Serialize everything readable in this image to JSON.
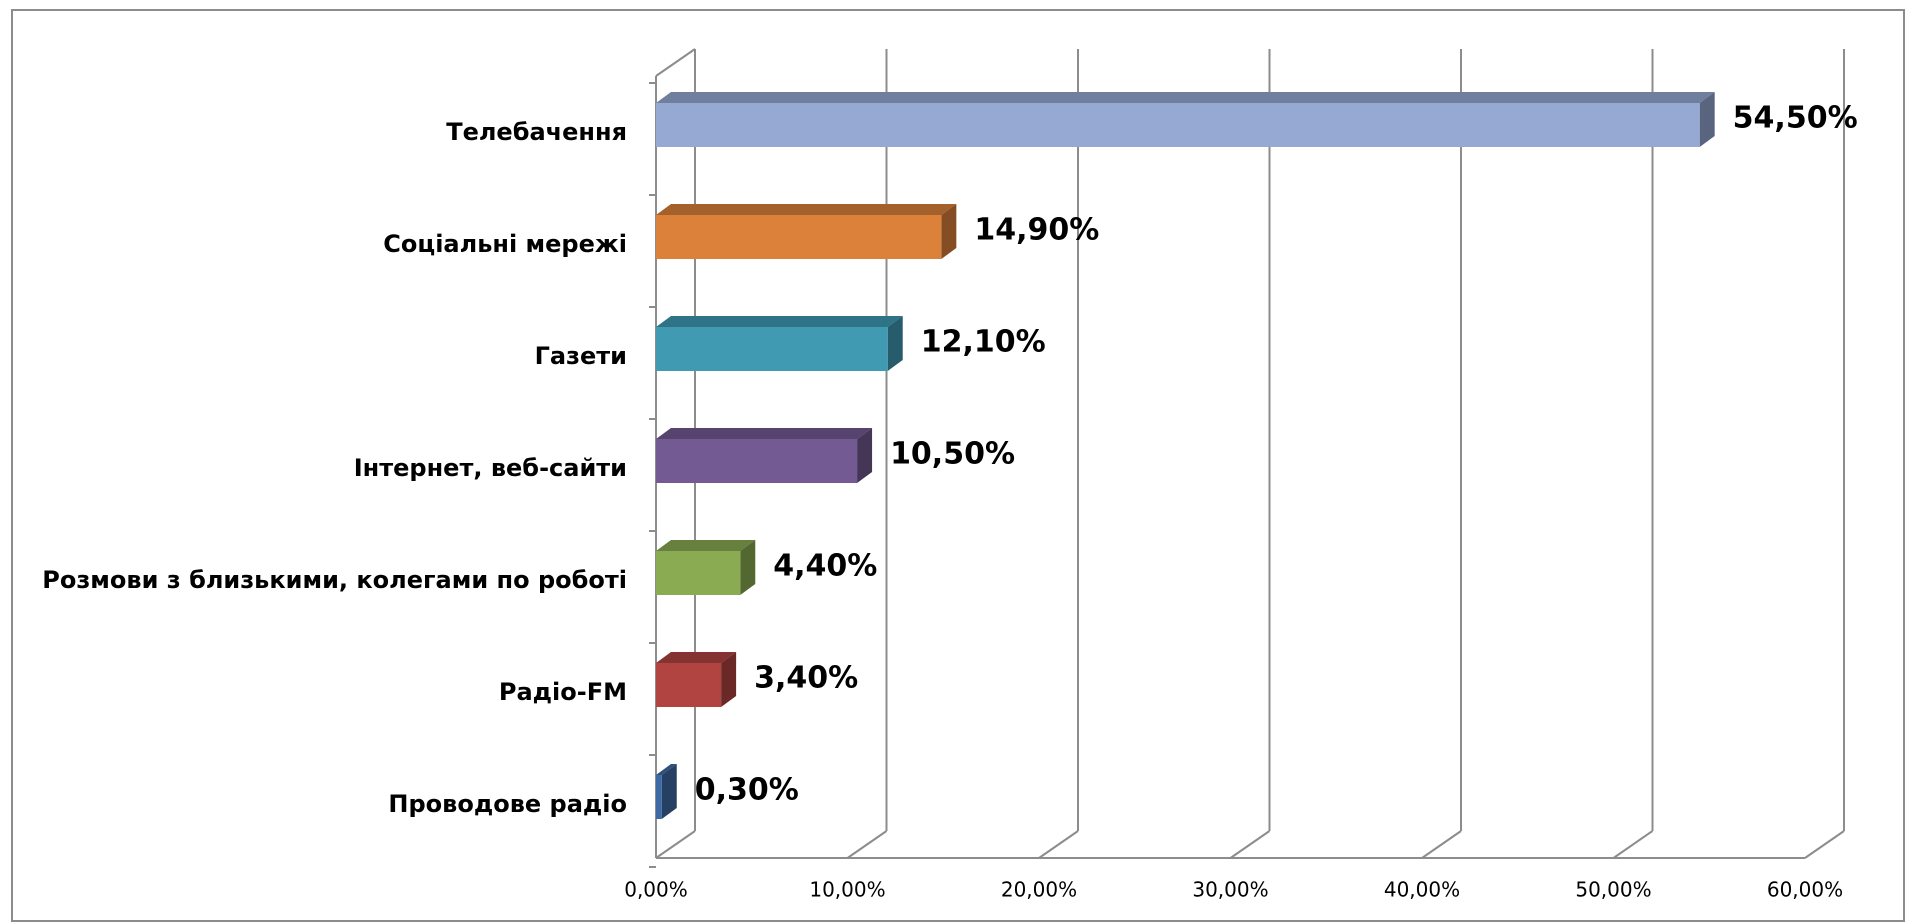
{
  "chart_data": {
    "type": "bar3d_horizontal",
    "categories": [
      "Телебачення",
      "Соціальні мережі",
      "Газети",
      "Інтернет, веб-сайти",
      "Розмови з близькими, колегами по роботі",
      "Радіо-FM",
      "Проводове радіо"
    ],
    "values": [
      54.5,
      14.9,
      12.1,
      10.5,
      4.4,
      3.4,
      0.3
    ],
    "value_labels": [
      "54,50%",
      "14,90%",
      "12,10%",
      "10,50%",
      "4,40%",
      "3,40%",
      "0,30%"
    ],
    "colors": [
      "#95a9d2",
      "#dc813a",
      "#3f9ab2",
      "#735a92",
      "#8aab52",
      "#b14441",
      "#3d6aa5"
    ],
    "xlim": [
      0,
      60
    ],
    "xticks": [
      {
        "value": 0,
        "label": "0,00%"
      },
      {
        "value": 10,
        "label": "10,00%"
      },
      {
        "value": 20,
        "label": "20,00%"
      },
      {
        "value": 30,
        "label": "30,00%"
      },
      {
        "value": 40,
        "label": "40,00%"
      },
      {
        "value": 50,
        "label": "50,00%"
      },
      {
        "value": 60,
        "label": "60,00%"
      }
    ],
    "grid": true
  }
}
